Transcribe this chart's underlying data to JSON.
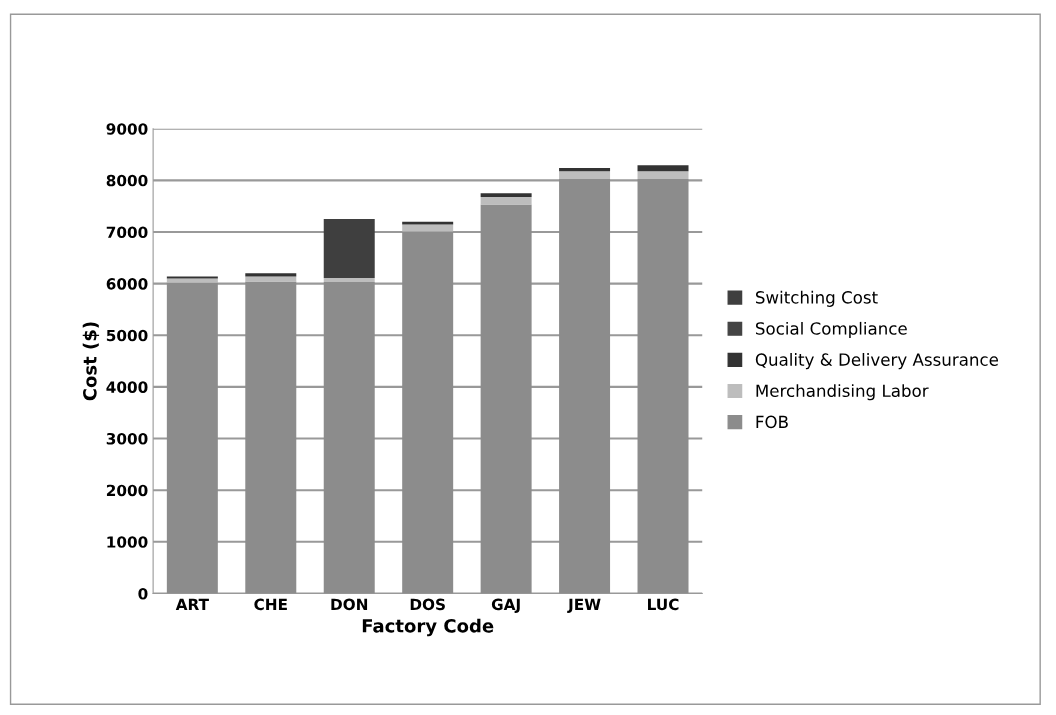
{
  "chart_data": {
    "type": "bar",
    "stacked": true,
    "xlabel": "Factory Code",
    "ylabel": "Cost ($)",
    "categories": [
      "ART",
      "CHE",
      "DON",
      "DOS",
      "GAJ",
      "JEW",
      "LUC"
    ],
    "series": [
      {
        "name": "FOB",
        "color": "#8c8c8c",
        "values": [
          6020,
          6040,
          6030,
          7010,
          7530,
          8025,
          8025
        ]
      },
      {
        "name": "Merchandising Labor",
        "color": "#bdbdbd",
        "values": [
          80,
          100,
          80,
          135,
          145,
          150,
          150
        ]
      },
      {
        "name": "Quality & Delivery Assurance",
        "color": "#333333",
        "values": [
          40,
          60,
          0,
          55,
          75,
          65,
          115
        ]
      },
      {
        "name": "Social Compliance",
        "color": "#444444",
        "values": [
          0,
          0,
          0,
          0,
          0,
          0,
          0
        ]
      },
      {
        "name": "Switching Cost",
        "color": "#3f3f3f",
        "values": [
          0,
          0,
          1140,
          0,
          0,
          0,
          0
        ]
      }
    ],
    "ylim": [
      0,
      9000
    ],
    "yticks": [
      0,
      1000,
      2000,
      3000,
      4000,
      5000,
      6000,
      7000,
      8000,
      9000
    ],
    "grid": "y",
    "legend": "right"
  }
}
